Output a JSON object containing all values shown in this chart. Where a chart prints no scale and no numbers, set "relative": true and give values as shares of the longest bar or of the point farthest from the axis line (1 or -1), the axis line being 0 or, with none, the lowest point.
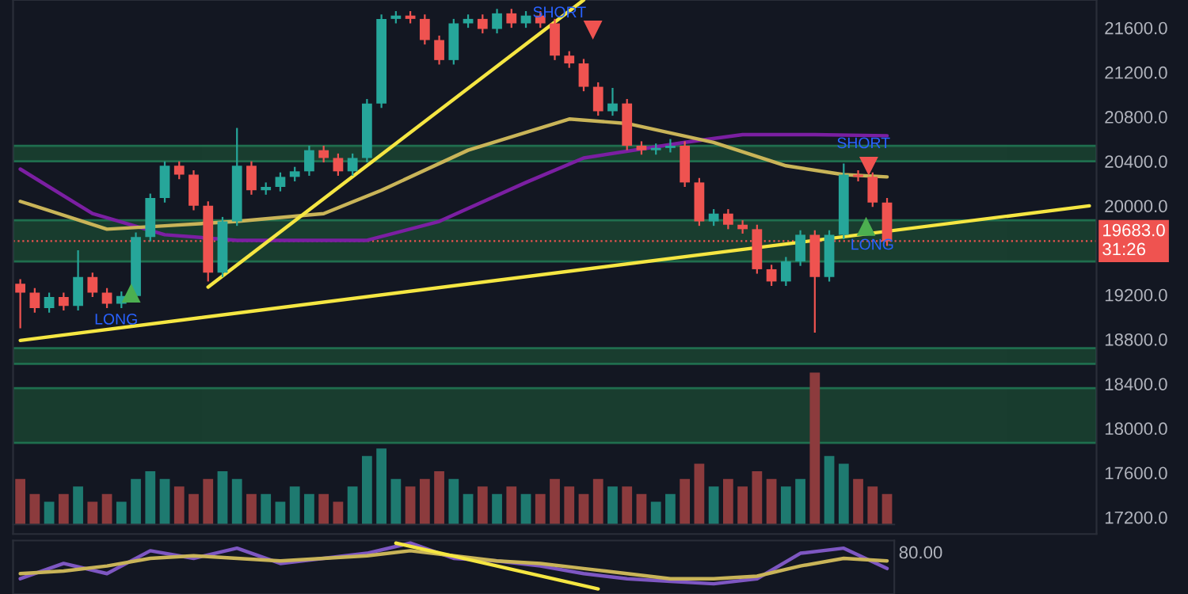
{
  "chart_data": [
    {
      "type": "candlestick",
      "tick_labels": false,
      "categories": [
        null,
        null,
        null,
        null,
        null,
        null,
        null,
        null,
        null,
        null,
        null,
        null,
        null,
        null,
        null,
        null,
        null,
        null,
        null,
        null,
        null,
        null,
        null,
        null,
        null,
        null,
        null,
        null,
        null,
        null,
        null,
        null,
        null,
        null,
        null,
        null,
        null,
        null,
        null,
        null,
        null,
        null,
        null,
        null,
        null,
        null,
        null,
        null,
        null,
        null,
        null,
        null,
        null,
        null,
        null,
        null,
        null,
        null,
        null,
        null,
        null
      ],
      "ylim": [
        17050,
        21850
      ],
      "ohlc": [
        [
          19300,
          19340,
          18900,
          19220
        ],
        [
          19220,
          19260,
          19040,
          19080
        ],
        [
          19080,
          19220,
          19040,
          19180
        ],
        [
          19180,
          19220,
          19060,
          19100
        ],
        [
          19100,
          19600,
          19060,
          19360
        ],
        [
          19360,
          19400,
          19180,
          19220
        ],
        [
          19220,
          19260,
          19080,
          19120
        ],
        [
          19120,
          19230,
          19080,
          19190
        ],
        [
          19190,
          19760,
          19150,
          19720
        ],
        [
          19720,
          20110,
          19680,
          20070
        ],
        [
          20070,
          20400,
          20030,
          20360
        ],
        [
          20360,
          20400,
          20240,
          20280
        ],
        [
          20280,
          20320,
          19960,
          20000
        ],
        [
          20000,
          20040,
          19320,
          19400
        ],
        [
          19400,
          19900,
          19360,
          19860
        ],
        [
          19860,
          20700,
          19820,
          20360
        ],
        [
          20360,
          20400,
          20100,
          20140
        ],
        [
          20140,
          20210,
          20100,
          20170
        ],
        [
          20170,
          20300,
          20130,
          20260
        ],
        [
          20260,
          20350,
          20220,
          20310
        ],
        [
          20310,
          20540,
          20270,
          20500
        ],
        [
          20500,
          20540,
          20390,
          20430
        ],
        [
          20430,
          20470,
          20270,
          20310
        ],
        [
          20310,
          20470,
          20270,
          20430
        ],
        [
          20430,
          20960,
          20390,
          20920
        ],
        [
          20920,
          21720,
          20880,
          21680
        ],
        [
          21680,
          21750,
          21640,
          21710
        ],
        [
          21710,
          21750,
          21640,
          21680
        ],
        [
          21680,
          21720,
          21450,
          21490
        ],
        [
          21490,
          21530,
          21270,
          21310
        ],
        [
          21310,
          21680,
          21270,
          21640
        ],
        [
          21640,
          21720,
          21600,
          21680
        ],
        [
          21680,
          21720,
          21550,
          21590
        ],
        [
          21590,
          21770,
          21550,
          21730
        ],
        [
          21730,
          21770,
          21600,
          21640
        ],
        [
          21640,
          21750,
          21600,
          21710
        ],
        [
          21710,
          21750,
          21600,
          21640
        ],
        [
          21640,
          21680,
          21310,
          21350
        ],
        [
          21350,
          21390,
          21240,
          21280
        ],
        [
          21280,
          21320,
          21030,
          21070
        ],
        [
          21070,
          21110,
          20810,
          20850
        ],
        [
          20850,
          21060,
          20810,
          20920
        ],
        [
          20920,
          20960,
          20500,
          20540
        ],
        [
          20540,
          20580,
          20460,
          20500
        ],
        [
          20500,
          20560,
          20460,
          20520
        ],
        [
          20520,
          20600,
          20480,
          20540
        ],
        [
          20540,
          20580,
          20170,
          20210
        ],
        [
          20210,
          20250,
          19820,
          19860
        ],
        [
          19860,
          19970,
          19820,
          19930
        ],
        [
          19930,
          19970,
          19790,
          19830
        ],
        [
          19830,
          19870,
          19750,
          19790
        ],
        [
          19790,
          19830,
          19390,
          19430
        ],
        [
          19430,
          19470,
          19280,
          19320
        ],
        [
          19320,
          19540,
          19280,
          19500
        ],
        [
          19500,
          19780,
          19460,
          19740
        ],
        [
          19740,
          19780,
          18860,
          19360
        ],
        [
          19360,
          19780,
          19320,
          19740
        ],
        [
          19740,
          20380,
          19700,
          20280
        ],
        [
          20280,
          20320,
          20220,
          20260
        ],
        [
          20260,
          20300,
          19990,
          20030
        ],
        [
          20030,
          20070,
          19640,
          19680
        ]
      ],
      "colors": [
        "#ef5350",
        "#ef5350",
        "#26a69a",
        "#ef5350",
        "#26a69a",
        "#ef5350",
        "#ef5350",
        "#26a69a",
        "#26a69a",
        "#26a69a",
        "#26a69a",
        "#ef5350",
        "#ef5350",
        "#ef5350",
        "#26a69a",
        "#26a69a",
        "#ef5350",
        "#26a69a",
        "#26a69a",
        "#26a69a",
        "#26a69a",
        "#ef5350",
        "#ef5350",
        "#26a69a",
        "#26a69a",
        "#26a69a",
        "#26a69a",
        "#ef5350",
        "#ef5350",
        "#ef5350",
        "#26a69a",
        "#26a69a",
        "#ef5350",
        "#26a69a",
        "#ef5350",
        "#26a69a",
        "#ef5350",
        "#ef5350",
        "#ef5350",
        "#ef5350",
        "#ef5350",
        "#26a69a",
        "#ef5350",
        "#ef5350",
        "#26a69a",
        "#26a69a",
        "#ef5350",
        "#ef5350",
        "#26a69a",
        "#ef5350",
        "#ef5350",
        "#ef5350",
        "#ef5350",
        "#26a69a",
        "#26a69a",
        "#ef5350",
        "#26a69a",
        "#26a69a",
        "#ef5350",
        "#ef5350",
        "#ef5350"
      ],
      "annotations": [
        "LONG",
        "SHORT",
        "SHORT",
        "LONG"
      ]
    },
    {
      "type": "line",
      "tick_labels": "y",
      "ylim": [
        17050,
        21850
      ],
      "yticks": [
        {
          "value": 17200,
          "label": "17200.0"
        },
        {
          "value": 17600,
          "label": "17600.0"
        },
        {
          "value": 18000,
          "label": "18000.0"
        },
        {
          "value": 18400,
          "label": "18400.0"
        },
        {
          "value": 18800,
          "label": "18800.0"
        },
        {
          "value": 19200,
          "label": "19200.0"
        },
        {
          "value": 20000,
          "label": "20000.0"
        },
        {
          "value": 20400,
          "label": "20400.0"
        },
        {
          "value": 20800,
          "label": "20800.0"
        },
        {
          "value": 21200,
          "label": "21200.0"
        },
        {
          "value": 21600,
          "label": "21600.0"
        }
      ],
      "bands": [
        {
          "axis": "y",
          "from": 19500,
          "to": 19870,
          "color": "#1e5c3a"
        },
        {
          "axis": "y",
          "from": 20400,
          "to": 20540,
          "color": "#1e5c3a"
        },
        {
          "axis": "y",
          "from": 18580,
          "to": 18720,
          "color": "#1e5c3a"
        },
        {
          "axis": "y",
          "from": 17870,
          "to": 18360,
          "color": "#1e5c3a"
        }
      ],
      "ref_lines": [
        {
          "axis": "y",
          "value": 19683,
          "label": "19683.0\n31:26",
          "color": "#ef5350",
          "line_style": "dotted"
        }
      ],
      "categories": [
        null,
        null,
        null,
        null,
        null,
        null,
        null,
        null,
        null,
        null,
        null,
        null,
        null,
        null,
        null,
        null,
        null,
        null,
        null,
        null,
        null,
        null,
        null,
        null,
        null,
        null,
        null,
        null,
        null,
        null,
        null,
        null,
        null,
        null,
        null,
        null,
        null,
        null,
        null,
        null,
        null,
        null,
        null,
        null,
        null,
        null,
        null,
        null,
        null,
        null,
        null,
        null,
        null,
        null,
        null,
        null,
        null,
        null,
        null,
        null,
        null,
        null,
        null,
        null,
        null,
        null,
        null,
        null,
        null,
        null,
        null,
        null,
        null,
        null,
        null
      ],
      "series": [
        {
          "color": "#7b1fa2",
          "values": [
            20330,
            null,
            null,
            null,
            null,
            19930,
            null,
            null,
            null,
            null,
            19740,
            null,
            null,
            null,
            null,
            19690,
            null,
            null,
            null,
            null,
            null,
            null,
            null,
            null,
            19690,
            null,
            null,
            null,
            null,
            19860,
            null,
            null,
            null,
            null,
            null,
            20210,
            null,
            null,
            null,
            20430,
            null,
            null,
            null,
            null,
            null,
            null,
            20570,
            null,
            null,
            null,
            20640,
            null,
            null,
            null,
            null,
            20640,
            null,
            null,
            null,
            null,
            20630,
            null,
            null,
            null,
            null,
            null,
            null,
            null,
            null,
            null,
            null,
            null,
            null,
            null,
            null
          ]
        },
        {
          "color": "#c9b458",
          "values": [
            20040,
            null,
            null,
            null,
            null,
            null,
            19790,
            null,
            null,
            null,
            19820,
            null,
            null,
            null,
            null,
            19860,
            null,
            null,
            null,
            null,
            null,
            19930,
            null,
            null,
            null,
            20140,
            null,
            null,
            null,
            null,
            null,
            20500,
            null,
            null,
            null,
            null,
            null,
            null,
            20780,
            null,
            null,
            null,
            20740,
            null,
            null,
            null,
            null,
            null,
            20570,
            null,
            null,
            null,
            null,
            20360,
            null,
            null,
            null,
            20280,
            null,
            null,
            20260,
            null,
            null,
            null,
            null,
            null,
            null,
            null,
            null,
            null,
            null,
            null,
            null,
            null,
            null
          ]
        },
        {
          "color": "#f5e642",
          "values": [
            null,
            null,
            null,
            null,
            null,
            null,
            null,
            null,
            null,
            null,
            null,
            null,
            null,
            19270,
            null,
            null,
            null,
            null,
            null,
            null,
            null,
            null,
            null,
            null,
            null,
            null,
            null,
            null,
            null,
            null,
            null,
            null,
            null,
            null,
            null,
            null,
            null,
            null,
            null,
            21850,
            null,
            null,
            null,
            null,
            null,
            null,
            null,
            null,
            null,
            null,
            null,
            null,
            null,
            null,
            null,
            null,
            null,
            null,
            null,
            null,
            null,
            null,
            null,
            null,
            null,
            null,
            null,
            null,
            null,
            null,
            null,
            null,
            null,
            null,
            null
          ]
        },
        {
          "color": "#f5e642",
          "values": [
            18790,
            null,
            null,
            null,
            null,
            null,
            null,
            null,
            null,
            null,
            null,
            null,
            null,
            null,
            null,
            null,
            null,
            null,
            null,
            null,
            null,
            null,
            null,
            null,
            null,
            null,
            null,
            null,
            null,
            null,
            null,
            null,
            null,
            null,
            null,
            null,
            null,
            null,
            null,
            null,
            null,
            null,
            null,
            null,
            null,
            null,
            null,
            null,
            null,
            null,
            null,
            null,
            null,
            null,
            null,
            null,
            null,
            null,
            null,
            null,
            null,
            null,
            null,
            null,
            null,
            null,
            null,
            null,
            null,
            null,
            null,
            null,
            null,
            null,
            20000
          ]
        }
      ]
    },
    {
      "type": "bar",
      "relative": true,
      "categories": [
        null,
        null,
        null,
        null,
        null,
        null,
        null,
        null,
        null,
        null,
        null,
        null,
        null,
        null,
        null,
        null,
        null,
        null,
        null,
        null,
        null,
        null,
        null,
        null,
        null,
        null,
        null,
        null,
        null,
        null,
        null,
        null,
        null,
        null,
        null,
        null,
        null,
        null,
        null,
        null,
        null,
        null,
        null,
        null,
        null,
        null,
        null,
        null,
        null,
        null,
        null,
        null,
        null,
        null,
        null,
        null,
        null,
        null,
        null,
        null,
        null
      ],
      "values": [
        0.3,
        0.2,
        0.15,
        0.2,
        0.25,
        0.15,
        0.2,
        0.15,
        0.3,
        0.35,
        0.3,
        0.25,
        0.2,
        0.3,
        0.35,
        0.3,
        0.2,
        0.2,
        0.15,
        0.25,
        0.2,
        0.2,
        0.15,
        0.25,
        0.45,
        0.5,
        0.3,
        0.25,
        0.3,
        0.35,
        0.3,
        0.2,
        0.25,
        0.2,
        0.25,
        0.2,
        0.2,
        0.3,
        0.25,
        0.2,
        0.3,
        0.25,
        0.25,
        0.2,
        0.15,
        0.2,
        0.3,
        0.4,
        0.25,
        0.3,
        0.25,
        0.35,
        0.3,
        0.25,
        0.3,
        1,
        0.45,
        0.4,
        0.3,
        0.25,
        0.2
      ],
      "colors": [
        "#8c3b3d",
        "#8c3b3d",
        "#1e7a70",
        "#8c3b3d",
        "#1e7a70",
        "#8c3b3d",
        "#8c3b3d",
        "#1e7a70",
        "#1e7a70",
        "#1e7a70",
        "#1e7a70",
        "#8c3b3d",
        "#8c3b3d",
        "#8c3b3d",
        "#1e7a70",
        "#1e7a70",
        "#8c3b3d",
        "#1e7a70",
        "#1e7a70",
        "#1e7a70",
        "#1e7a70",
        "#8c3b3d",
        "#8c3b3d",
        "#1e7a70",
        "#1e7a70",
        "#1e7a70",
        "#1e7a70",
        "#8c3b3d",
        "#8c3b3d",
        "#8c3b3d",
        "#1e7a70",
        "#1e7a70",
        "#8c3b3d",
        "#1e7a70",
        "#8c3b3d",
        "#1e7a70",
        "#8c3b3d",
        "#8c3b3d",
        "#8c3b3d",
        "#8c3b3d",
        "#8c3b3d",
        "#1e7a70",
        "#8c3b3d",
        "#8c3b3d",
        "#1e7a70",
        "#1e7a70",
        "#8c3b3d",
        "#8c3b3d",
        "#1e7a70",
        "#8c3b3d",
        "#8c3b3d",
        "#8c3b3d",
        "#8c3b3d",
        "#1e7a70",
        "#1e7a70",
        "#8c3b3d",
        "#1e7a70",
        "#1e7a70",
        "#8c3b3d",
        "#8c3b3d",
        "#8c3b3d"
      ]
    },
    {
      "type": "line",
      "relative": true,
      "annotations": [
        "80.00"
      ],
      "categories": [
        null,
        null,
        null,
        null,
        null,
        null,
        null,
        null,
        null,
        null,
        null,
        null,
        null,
        null,
        null,
        null,
        null,
        null,
        null,
        null,
        null,
        null,
        null,
        null,
        null,
        null,
        null,
        null,
        null,
        null,
        null,
        null,
        null,
        null,
        null,
        null,
        null,
        null,
        null,
        null,
        null,
        null,
        null,
        null,
        null,
        null,
        null,
        null,
        null,
        null,
        null,
        null,
        null,
        null,
        null,
        null,
        null,
        null,
        null,
        null,
        null
      ],
      "series": [
        {
          "color": "#7e57c2",
          "values": [
            0.3,
            null,
            null,
            0.6,
            null,
            null,
            0.4,
            null,
            null,
            0.85,
            null,
            null,
            0.7,
            null,
            null,
            0.9,
            null,
            null,
            0.6,
            null,
            null,
            0.7,
            null,
            null,
            0.8,
            null,
            null,
            1.0,
            null,
            null,
            0.7,
            null,
            null,
            0.65,
            null,
            null,
            0.55,
            null,
            null,
            0.4,
            null,
            null,
            0.3,
            null,
            null,
            0.25,
            null,
            null,
            0.2,
            null,
            null,
            0.3,
            null,
            null,
            0.8,
            null,
            null,
            0.9,
            null,
            null,
            0.5
          ]
        },
        {
          "color": "#c9b458",
          "values": [
            0.4,
            null,
            null,
            0.45,
            null,
            null,
            0.55,
            null,
            null,
            0.7,
            null,
            null,
            0.75,
            null,
            null,
            0.7,
            null,
            null,
            0.65,
            null,
            null,
            0.7,
            null,
            null,
            0.75,
            null,
            null,
            0.85,
            null,
            null,
            0.75,
            null,
            null,
            0.65,
            null,
            null,
            0.6,
            null,
            null,
            0.5,
            null,
            null,
            0.4,
            null,
            null,
            0.3,
            null,
            null,
            0.3,
            null,
            null,
            0.35,
            null,
            null,
            0.55,
            null,
            null,
            0.7,
            null,
            null,
            0.65
          ]
        },
        {
          "color": "#f5e642",
          "values": [
            null,
            null,
            null,
            null,
            null,
            null,
            null,
            null,
            null,
            null,
            null,
            null,
            null,
            null,
            null,
            null,
            null,
            null,
            null,
            null,
            null,
            null,
            null,
            null,
            null,
            null,
            1.0,
            null,
            null,
            null,
            null,
            null,
            null,
            null,
            null,
            null,
            null,
            null,
            null,
            null,
            0.1,
            null,
            null,
            null,
            null,
            null,
            null,
            null,
            null,
            null,
            null,
            null,
            null,
            null,
            null,
            null,
            null,
            null,
            null,
            null,
            null
          ]
        }
      ]
    }
  ]
}
